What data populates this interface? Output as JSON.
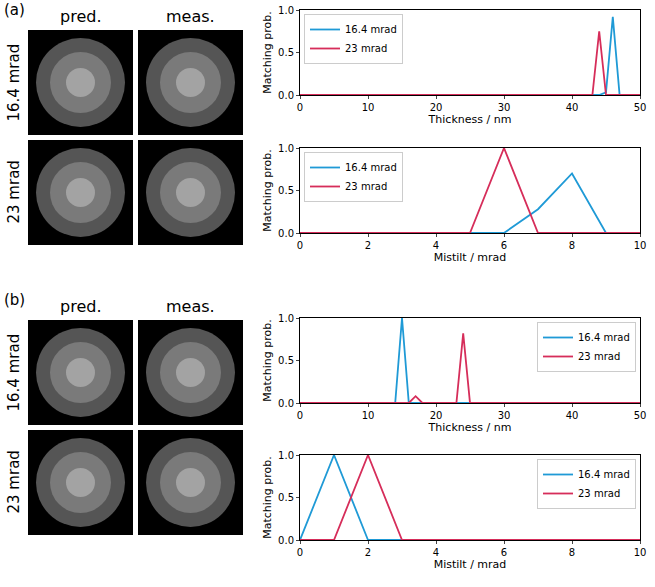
{
  "panels": [
    {
      "label": "(a)",
      "image_columns": [
        "pred.",
        "meas."
      ],
      "image_rows": [
        "16.4 mrad",
        "23 mrad"
      ]
    },
    {
      "label": "(b)",
      "image_columns": [
        "pred.",
        "meas."
      ],
      "image_rows": [
        "16.4 mrad",
        "23 mrad"
      ]
    }
  ],
  "chart_data": [
    {
      "type": "line",
      "x_label": "Thickness / nm",
      "y_label": "Matching prob.",
      "xlim": [
        0,
        50
      ],
      "xticks": [
        0,
        10,
        20,
        30,
        40,
        50
      ],
      "ylim": [
        0,
        1
      ],
      "yticks": [
        {
          "value": 0,
          "label": "0.0"
        },
        {
          "value": 0.5,
          "label": "0.5"
        },
        {
          "value": 1,
          "label": "1.0"
        }
      ],
      "grid": false,
      "legend": "upper left",
      "x": [
        0,
        43,
        44,
        45,
        46,
        47,
        50
      ],
      "series": [
        {
          "name": "16.4 mrad",
          "color": "#1f9ad6",
          "values": [
            0,
            0,
            0,
            0.03,
            0.92,
            0,
            0
          ]
        },
        {
          "name": "23 mrad",
          "color": "#d62d5a",
          "values": [
            0,
            0,
            0.75,
            0,
            0,
            0,
            0
          ]
        }
      ]
    },
    {
      "type": "line",
      "x_label": "Mistilt / mrad",
      "y_label": "Matching prob.",
      "xlim": [
        0,
        10
      ],
      "xticks": [
        0,
        2,
        4,
        6,
        8,
        10
      ],
      "ylim": [
        0,
        1
      ],
      "yticks": [
        {
          "value": 0,
          "label": "0.0"
        },
        {
          "value": 0.5,
          "label": "0.5"
        },
        {
          "value": 1,
          "label": "1.0"
        }
      ],
      "grid": false,
      "legend": "upper left",
      "x": [
        0,
        1,
        2,
        3,
        4,
        5,
        6,
        7,
        8,
        9,
        10
      ],
      "series": [
        {
          "name": "16.4 mrad",
          "color": "#1f9ad6",
          "values": [
            0,
            0,
            0,
            0,
            0,
            0,
            0,
            0.28,
            0.7,
            0,
            0
          ]
        },
        {
          "name": "23 mrad",
          "color": "#d62d5a",
          "values": [
            0,
            0,
            0,
            0,
            0,
            0,
            1.0,
            0,
            0,
            0,
            0
          ]
        }
      ]
    },
    {
      "type": "line",
      "x_label": "Thickness / nm",
      "y_label": "Matching prob.",
      "xlim": [
        0,
        50
      ],
      "xticks": [
        0,
        10,
        20,
        30,
        40,
        50
      ],
      "ylim": [
        0,
        1
      ],
      "yticks": [
        {
          "value": 0,
          "label": "0.0"
        },
        {
          "value": 0.5,
          "label": "0.5"
        },
        {
          "value": 1,
          "label": "1.0"
        }
      ],
      "grid": false,
      "legend": "upper right",
      "x": [
        0,
        14,
        15,
        16,
        17,
        18,
        23,
        24,
        25,
        50
      ],
      "series": [
        {
          "name": "16.4 mrad",
          "color": "#1f9ad6",
          "values": [
            0,
            0,
            1.0,
            0,
            0,
            0,
            0,
            0,
            0,
            0
          ]
        },
        {
          "name": "23 mrad",
          "color": "#d62d5a",
          "values": [
            0,
            0,
            0,
            0,
            0.08,
            0,
            0,
            0.82,
            0,
            0
          ]
        }
      ]
    },
    {
      "type": "line",
      "x_label": "Mistilt / mrad",
      "y_label": "Matching prob.",
      "xlim": [
        0,
        10
      ],
      "xticks": [
        0,
        2,
        4,
        6,
        8,
        10
      ],
      "ylim": [
        0,
        1
      ],
      "yticks": [
        {
          "value": 0,
          "label": "0.0"
        },
        {
          "value": 0.5,
          "label": "0.5"
        },
        {
          "value": 1,
          "label": "1.0"
        }
      ],
      "grid": false,
      "legend": "upper right",
      "x": [
        0,
        1,
        2,
        3,
        4,
        5,
        6,
        7,
        8,
        9,
        10
      ],
      "series": [
        {
          "name": "16.4 mrad",
          "color": "#1f9ad6",
          "values": [
            0,
            1.0,
            0,
            0,
            0,
            0,
            0,
            0,
            0,
            0,
            0
          ]
        },
        {
          "name": "23 mrad",
          "color": "#d62d5a",
          "values": [
            0,
            0,
            1.0,
            0,
            0,
            0,
            0,
            0,
            0,
            0,
            0
          ]
        }
      ]
    }
  ]
}
